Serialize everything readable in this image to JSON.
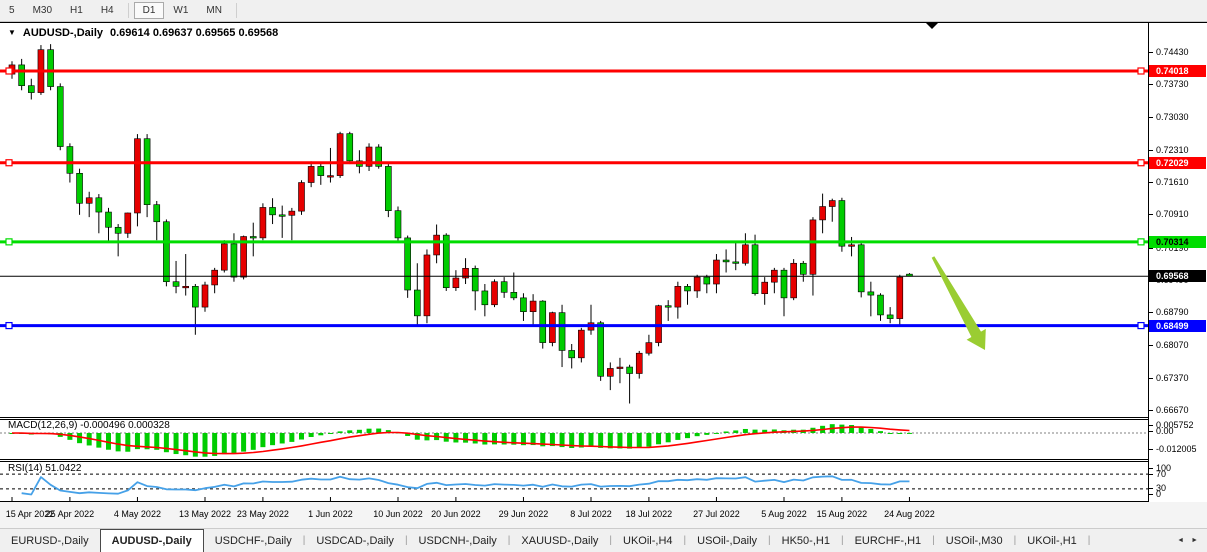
{
  "toolbar": {
    "timeframes": [
      {
        "label": "5",
        "active": false
      },
      {
        "label": "M30",
        "active": false
      },
      {
        "label": "H1",
        "active": false
      },
      {
        "label": "H4",
        "active": false
      },
      {
        "label": "D1",
        "active": true
      },
      {
        "label": "W1",
        "active": false
      },
      {
        "label": "MN",
        "active": false
      }
    ]
  },
  "chart": {
    "title": {
      "symbol": "AUDUSD-,Daily",
      "ohlc": "0.69614 0.69637 0.69565 0.69568"
    },
    "price_axis_ticks": [
      "0.74430",
      "0.73730",
      "0.73030",
      "0.72310",
      "0.71610",
      "0.70910",
      "0.70190",
      "0.69490",
      "0.68790",
      "0.68070",
      "0.67370",
      "0.66670"
    ],
    "levels": [
      {
        "name": "resistance-line-1",
        "price": 0.74018,
        "label": "0.74018",
        "color": "#ff0000",
        "text_color": "#ffffff",
        "width": 3,
        "handles": true
      },
      {
        "name": "resistance-line-2",
        "price": 0.72029,
        "label": "0.72029",
        "color": "#ff0000",
        "text_color": "#ffffff",
        "width": 3,
        "handles": true
      },
      {
        "name": "support-line-green",
        "price": 0.70314,
        "label": "0.70314",
        "color": "#00dd00",
        "text_color": "#000000",
        "width": 3,
        "handles": true
      },
      {
        "name": "current-price-line",
        "price": 0.69568,
        "label": "0.69568",
        "color": "#000000",
        "text_color": "#ffffff",
        "width": 1,
        "handles": false
      },
      {
        "name": "support-line-blue",
        "price": 0.68499,
        "label": "0.68499",
        "color": "#0000ff",
        "text_color": "#ffffff",
        "width": 3,
        "handles": true
      }
    ],
    "arrow_annotation": {
      "from_x": 933,
      "from_y": 257,
      "to_x": 985,
      "to_y": 350,
      "color": "#9acd32"
    },
    "shift_marker_x": 932
  },
  "chart_data": {
    "type": "candlestick",
    "symbol": "AUDUSD",
    "timeframe": "Daily",
    "title": "AUDUSD-,Daily",
    "ylim": [
      0.66495,
      0.7508
    ],
    "bull_color": "#e60000",
    "bear_color": "#00cc00",
    "note": "red = bullish, green = bearish",
    "x_labels": [
      "15 Apr 2022",
      "25 Apr 2022",
      "4 May 2022",
      "13 May 2022",
      "23 May 2022",
      "1 Jun 2022",
      "10 Jun 2022",
      "20 Jun 2022",
      "29 Jun 2022",
      "8 Jul 2022",
      "18 Jul 2022",
      "27 Jul 2022",
      "5 Aug 2022",
      "15 Aug 2022",
      "24 Aug 2022"
    ],
    "x_label_indices": [
      0,
      6,
      13,
      20,
      26,
      33,
      40,
      46,
      53,
      60,
      66,
      73,
      80,
      86,
      93
    ],
    "ohlc": [
      [
        0.7395,
        0.7423,
        0.7385,
        0.7415
      ],
      [
        0.7415,
        0.7428,
        0.736,
        0.737
      ],
      [
        0.737,
        0.7385,
        0.734,
        0.7355
      ],
      [
        0.7355,
        0.7458,
        0.735,
        0.7448
      ],
      [
        0.7448,
        0.746,
        0.736,
        0.7368
      ],
      [
        0.7368,
        0.7375,
        0.723,
        0.7238
      ],
      [
        0.7238,
        0.7245,
        0.716,
        0.718
      ],
      [
        0.718,
        0.719,
        0.709,
        0.7115
      ],
      [
        0.7115,
        0.714,
        0.7085,
        0.7127
      ],
      [
        0.7127,
        0.7135,
        0.705,
        0.7096
      ],
      [
        0.7096,
        0.7105,
        0.703,
        0.7063
      ],
      [
        0.7063,
        0.707,
        0.7,
        0.705
      ],
      [
        0.705,
        0.7095,
        0.704,
        0.7094
      ],
      [
        0.7094,
        0.7265,
        0.7065,
        0.7255
      ],
      [
        0.7255,
        0.7265,
        0.7085,
        0.7112
      ],
      [
        0.7112,
        0.712,
        0.7035,
        0.7075
      ],
      [
        0.7075,
        0.708,
        0.6935,
        0.6945
      ],
      [
        0.6945,
        0.699,
        0.692,
        0.6935
      ],
      [
        0.6935,
        0.7005,
        0.6915,
        0.6935
      ],
      [
        0.6935,
        0.694,
        0.683,
        0.689
      ],
      [
        0.689,
        0.6945,
        0.688,
        0.6938
      ],
      [
        0.6938,
        0.6975,
        0.692,
        0.697
      ],
      [
        0.697,
        0.7035,
        0.6965,
        0.7027
      ],
      [
        0.7027,
        0.705,
        0.6945,
        0.6955
      ],
      [
        0.6955,
        0.7045,
        0.695,
        0.7043
      ],
      [
        0.7043,
        0.7073,
        0.7,
        0.704
      ],
      [
        0.704,
        0.7115,
        0.7035,
        0.7106
      ],
      [
        0.7106,
        0.7126,
        0.707,
        0.709
      ],
      [
        0.709,
        0.711,
        0.704,
        0.7089
      ],
      [
        0.7089,
        0.7105,
        0.7035,
        0.7098
      ],
      [
        0.7098,
        0.7165,
        0.709,
        0.716
      ],
      [
        0.716,
        0.7206,
        0.715,
        0.7195
      ],
      [
        0.7195,
        0.7203,
        0.7155,
        0.7175
      ],
      [
        0.7175,
        0.7235,
        0.716,
        0.7175
      ],
      [
        0.7175,
        0.727,
        0.717,
        0.7266
      ],
      [
        0.7266,
        0.727,
        0.72,
        0.7207
      ],
      [
        0.7207,
        0.723,
        0.718,
        0.7195
      ],
      [
        0.7195,
        0.7245,
        0.7185,
        0.7237
      ],
      [
        0.7237,
        0.7243,
        0.719,
        0.7195
      ],
      [
        0.7195,
        0.72,
        0.7085,
        0.7099
      ],
      [
        0.7099,
        0.7108,
        0.703,
        0.704
      ],
      [
        0.704,
        0.7045,
        0.691,
        0.6927
      ],
      [
        0.6927,
        0.6985,
        0.685,
        0.6871
      ],
      [
        0.6871,
        0.7015,
        0.6855,
        0.7003
      ],
      [
        0.7003,
        0.7069,
        0.6985,
        0.7046
      ],
      [
        0.7046,
        0.705,
        0.6925,
        0.6932
      ],
      [
        0.6932,
        0.697,
        0.6925,
        0.6953
      ],
      [
        0.6953,
        0.6996,
        0.694,
        0.6974
      ],
      [
        0.6974,
        0.698,
        0.6883,
        0.6925
      ],
      [
        0.6925,
        0.694,
        0.687,
        0.6895
      ],
      [
        0.6895,
        0.695,
        0.689,
        0.6945
      ],
      [
        0.6945,
        0.6955,
        0.691,
        0.6922
      ],
      [
        0.6922,
        0.6965,
        0.6905,
        0.691
      ],
      [
        0.691,
        0.692,
        0.686,
        0.688
      ],
      [
        0.688,
        0.6918,
        0.685,
        0.6903
      ],
      [
        0.6903,
        0.6905,
        0.68,
        0.6813
      ],
      [
        0.6813,
        0.688,
        0.6805,
        0.6878
      ],
      [
        0.6878,
        0.6895,
        0.676,
        0.6796
      ],
      [
        0.6796,
        0.681,
        0.6757,
        0.678
      ],
      [
        0.678,
        0.6845,
        0.677,
        0.684
      ],
      [
        0.684,
        0.6895,
        0.683,
        0.6856
      ],
      [
        0.6856,
        0.686,
        0.673,
        0.674
      ],
      [
        0.674,
        0.677,
        0.671,
        0.6757
      ],
      [
        0.6757,
        0.678,
        0.6725,
        0.676
      ],
      [
        0.676,
        0.6765,
        0.6681,
        0.6746
      ],
      [
        0.6746,
        0.6795,
        0.6735,
        0.679
      ],
      [
        0.679,
        0.683,
        0.6785,
        0.6813
      ],
      [
        0.6813,
        0.6895,
        0.6805,
        0.6893
      ],
      [
        0.6893,
        0.6905,
        0.686,
        0.689
      ],
      [
        0.689,
        0.6945,
        0.6865,
        0.6935
      ],
      [
        0.6935,
        0.694,
        0.6895,
        0.6925
      ],
      [
        0.6925,
        0.696,
        0.691,
        0.6955
      ],
      [
        0.6955,
        0.696,
        0.692,
        0.694
      ],
      [
        0.694,
        0.7005,
        0.692,
        0.6992
      ],
      [
        0.6992,
        0.7015,
        0.6965,
        0.6988
      ],
      [
        0.6988,
        0.703,
        0.697,
        0.6985
      ],
      [
        0.6985,
        0.705,
        0.698,
        0.7025
      ],
      [
        0.7025,
        0.7047,
        0.6915,
        0.6919
      ],
      [
        0.6919,
        0.6955,
        0.6895,
        0.6944
      ],
      [
        0.6944,
        0.6975,
        0.692,
        0.697
      ],
      [
        0.697,
        0.6975,
        0.687,
        0.691
      ],
      [
        0.691,
        0.6994,
        0.6905,
        0.6985
      ],
      [
        0.6985,
        0.699,
        0.6945,
        0.6961
      ],
      [
        0.6961,
        0.7085,
        0.6915,
        0.7079
      ],
      [
        0.7079,
        0.7136,
        0.705,
        0.7108
      ],
      [
        0.7108,
        0.7125,
        0.7075,
        0.7121
      ],
      [
        0.7121,
        0.7127,
        0.701,
        0.7022
      ],
      [
        0.7022,
        0.7042,
        0.7,
        0.7025
      ],
      [
        0.7025,
        0.703,
        0.6911,
        0.6923
      ],
      [
        0.6923,
        0.6945,
        0.687,
        0.6916
      ],
      [
        0.6916,
        0.692,
        0.686,
        0.6873
      ],
      [
        0.6873,
        0.689,
        0.6855,
        0.6865
      ],
      [
        0.6865,
        0.696,
        0.685,
        0.6955
      ],
      [
        0.69614,
        0.69637,
        0.69565,
        0.69568
      ]
    ]
  },
  "indicators": {
    "macd": {
      "label": "MACD(12,26,9)",
      "values_text": "-0.000496 0.000328",
      "fast": 12,
      "slow": 26,
      "signal_period": 9,
      "axis_ticks": [
        "0.005752",
        "0.00",
        "-0.012005"
      ],
      "axis_range": [
        -0.012005,
        0.005752
      ],
      "histogram_color": "#00cc00",
      "signal_color": "#ff0000"
    },
    "rsi": {
      "label": "RSI(14)",
      "value_text": "51.0422",
      "period": 14,
      "axis_ticks": [
        "100",
        "70",
        "30",
        "0"
      ],
      "dashed_levels": [
        70,
        30
      ],
      "line_color": "#46a1e8"
    }
  },
  "tabs": {
    "items": [
      {
        "label": "EURUSD-,Daily",
        "active": false
      },
      {
        "label": "AUDUSD-,Daily",
        "active": true
      },
      {
        "label": "USDCHF-,Daily",
        "active": false
      },
      {
        "label": "USDCAD-,Daily",
        "active": false
      },
      {
        "label": "USDCNH-,Daily",
        "active": false
      },
      {
        "label": "XAUUSD-,Daily",
        "active": false
      },
      {
        "label": "UKOil-,H4",
        "active": false
      },
      {
        "label": "USOil-,Daily",
        "active": false
      },
      {
        "label": "HK50-,H1",
        "active": false
      },
      {
        "label": "EURCHF-,H1",
        "active": false
      },
      {
        "label": "USOil-,M30",
        "active": false
      },
      {
        "label": "UKOil-,H1",
        "active": false
      }
    ],
    "scroll_left": "◄",
    "scroll_right": "►"
  }
}
